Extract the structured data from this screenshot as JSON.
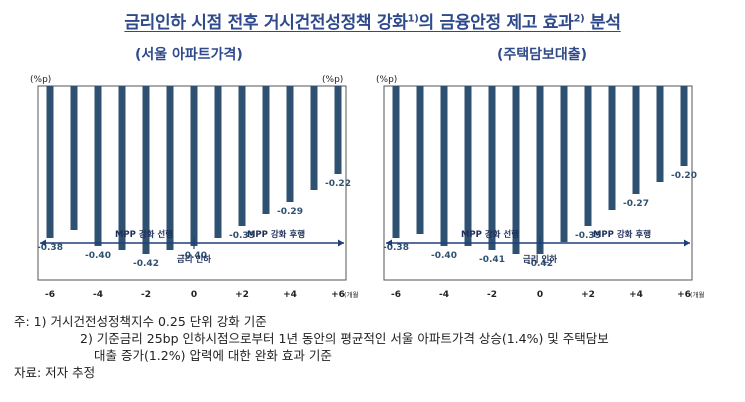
{
  "header": {
    "title_a": "금리인하 시점 전후 거시건전성정책 강화",
    "title_sup_a": "1)",
    "title_b": "의 금융안정 제고 효과",
    "title_sup_b": "2)",
    "title_c": " 분석"
  },
  "subtitles": {
    "left": "(서울 아파트가격)",
    "right": "(주택담보대출)"
  },
  "colors": {
    "bar": "#2f5171",
    "label": "#2f5171",
    "arrow": "#1f3f7a",
    "title": "#2f4a8a"
  },
  "chart_data": [
    {
      "type": "bar",
      "unit_label_left": "(%p)",
      "unit_label_right": "(%p)",
      "x": [
        -6,
        -5,
        -4,
        -3,
        -2,
        -1,
        0,
        1,
        2,
        3,
        4,
        5,
        6
      ],
      "tick_labels": [
        "-6",
        "-4",
        "-2",
        "0",
        "+2",
        "+4",
        "+6"
      ],
      "tick_x": [
        -6,
        -4,
        -2,
        0,
        2,
        4,
        6
      ],
      "x_unit": "(개월)",
      "values": [
        -0.38,
        -0.36,
        -0.4,
        -0.41,
        -0.42,
        -0.41,
        -0.4,
        -0.38,
        -0.35,
        -0.32,
        -0.29,
        -0.26,
        -0.22
      ],
      "data_labels": [
        {
          "x": -6,
          "text": "-0.38"
        },
        {
          "x": -4,
          "text": "-0.40"
        },
        {
          "x": -2,
          "text": "-0.42"
        },
        {
          "x": 0,
          "text": "-0.40"
        },
        {
          "x": 2,
          "text": "-0.35"
        },
        {
          "x": 4,
          "text": "-0.29"
        },
        {
          "x": 6,
          "text": "-0.22"
        }
      ],
      "ylim": [
        -0.5,
        0
      ],
      "annotations": {
        "before": "MPP 강화 선행",
        "after": "MPP 강화 후행",
        "event": "금리 인하"
      }
    },
    {
      "type": "bar",
      "unit_label_left": "(%p)",
      "unit_label_right": "",
      "x": [
        -6,
        -5,
        -4,
        -3,
        -2,
        -1,
        0,
        1,
        2,
        3,
        4,
        5,
        6
      ],
      "tick_labels": [
        "-6",
        "-4",
        "-2",
        "0",
        "+2",
        "+4",
        "+6"
      ],
      "tick_x": [
        -6,
        -4,
        -2,
        0,
        2,
        4,
        6
      ],
      "x_unit": "(개월)",
      "values": [
        -0.38,
        -0.37,
        -0.4,
        -0.4,
        -0.41,
        -0.42,
        -0.42,
        -0.39,
        -0.35,
        -0.31,
        -0.27,
        -0.24,
        -0.2
      ],
      "data_labels": [
        {
          "x": -6,
          "text": "-0.38"
        },
        {
          "x": -4,
          "text": "-0.40"
        },
        {
          "x": -2,
          "text": "-0.41"
        },
        {
          "x": 0,
          "text": "-0.42"
        },
        {
          "x": 2,
          "text": "-0.35"
        },
        {
          "x": 4,
          "text": "-0.27"
        },
        {
          "x": 6,
          "text": "-0.20"
        }
      ],
      "ylim": [
        -0.5,
        0
      ],
      "annotations": {
        "before": "MPP 강화 선행",
        "after": "MPP 강화 후행",
        "event": "금리 인하"
      }
    }
  ],
  "notes": {
    "line1": "주: 1) 거시건전성정책지수 0.25 단위 강화 기준",
    "line2": "2) 기준금리 25bp 인하시점으로부터 1년 동안의 평균적인 서울 아파트가격 상승(1.4%) 및 주택담보",
    "line3": "대출 증가(1.2%) 압력에 대한 완화 효과 기준",
    "source": "자료: 저자 추정"
  }
}
